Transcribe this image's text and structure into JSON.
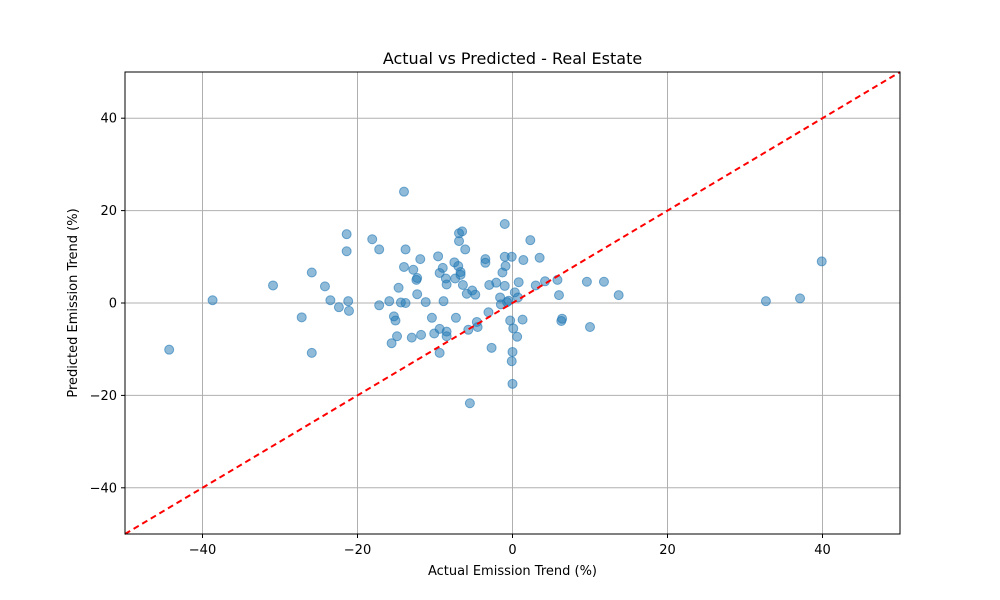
{
  "chart_data": {
    "type": "scatter",
    "title": "Actual vs Predicted - Real Estate",
    "xlabel": "Actual Emission Trend (%)",
    "ylabel": "Predicted Emission Trend (%)",
    "xlim": [
      -50,
      50
    ],
    "ylim": [
      -50,
      50
    ],
    "xticks": [
      -40,
      -20,
      0,
      20,
      40
    ],
    "yticks": [
      -40,
      -20,
      0,
      20,
      40
    ],
    "xtick_labels": [
      "−40",
      "−20",
      "0",
      "20",
      "40"
    ],
    "ytick_labels": [
      "−40",
      "−20",
      "0",
      "20",
      "40"
    ],
    "grid": true,
    "reference_line": {
      "from": [
        -50,
        -50
      ],
      "to": [
        50,
        50
      ],
      "style": "dashed",
      "color": "#ff0000"
    },
    "point_color": "#1f77b4",
    "points": [
      [
        -44.3,
        -10.1
      ],
      [
        -38.7,
        0.6
      ],
      [
        -30.9,
        3.8
      ],
      [
        -27.2,
        -3.1
      ],
      [
        -25.9,
        6.6
      ],
      [
        -25.9,
        -10.8
      ],
      [
        -24.2,
        3.6
      ],
      [
        -23.5,
        0.6
      ],
      [
        -22.4,
        -0.9
      ],
      [
        -21.4,
        14.9
      ],
      [
        -21.4,
        11.2
      ],
      [
        -21.2,
        0.4
      ],
      [
        -21.1,
        -1.7
      ],
      [
        -18.1,
        13.8
      ],
      [
        -17.2,
        11.6
      ],
      [
        -17.2,
        -0.5
      ],
      [
        -15.9,
        0.4
      ],
      [
        -15.6,
        -8.7
      ],
      [
        -15.3,
        -2.9
      ],
      [
        -15.1,
        -3.8
      ],
      [
        -14.9,
        -7.2
      ],
      [
        -14.7,
        3.3
      ],
      [
        -14.4,
        0.1
      ],
      [
        -14.0,
        7.8
      ],
      [
        -14.0,
        24.1
      ],
      [
        -13.8,
        11.6
      ],
      [
        -13.8,
        0.0
      ],
      [
        -13.0,
        -7.5
      ],
      [
        -12.8,
        7.2
      ],
      [
        -12.4,
        5.0
      ],
      [
        -12.3,
        5.4
      ],
      [
        -12.3,
        1.9
      ],
      [
        -11.9,
        9.5
      ],
      [
        -11.8,
        -6.9
      ],
      [
        -11.2,
        0.2
      ],
      [
        -10.4,
        -3.2
      ],
      [
        -10.1,
        -6.6
      ],
      [
        -9.6,
        10.1
      ],
      [
        -9.4,
        6.5
      ],
      [
        -9.4,
        -5.6
      ],
      [
        -9.4,
        -10.8
      ],
      [
        -9.0,
        7.6
      ],
      [
        -8.9,
        0.4
      ],
      [
        -8.6,
        5.3
      ],
      [
        -8.5,
        4.0
      ],
      [
        -8.5,
        -6.2
      ],
      [
        -8.5,
        -7.2
      ],
      [
        -7.5,
        8.8
      ],
      [
        -7.4,
        5.3
      ],
      [
        -7.3,
        -3.2
      ],
      [
        -7.0,
        8.0
      ],
      [
        -6.9,
        15.1
      ],
      [
        -6.9,
        13.4
      ],
      [
        -6.7,
        6.7
      ],
      [
        -6.7,
        6.1
      ],
      [
        -6.5,
        15.5
      ],
      [
        -6.4,
        3.9
      ],
      [
        -6.1,
        11.6
      ],
      [
        -5.9,
        2.0
      ],
      [
        -5.7,
        -5.8
      ],
      [
        -5.5,
        -21.7
      ],
      [
        -5.2,
        2.7
      ],
      [
        -4.8,
        1.8
      ],
      [
        -4.6,
        -4.1
      ],
      [
        -4.5,
        -5.2
      ],
      [
        -3.5,
        9.5
      ],
      [
        -3.5,
        8.7
      ],
      [
        -3.1,
        -2.0
      ],
      [
        -3.0,
        3.9
      ],
      [
        -2.7,
        -9.7
      ],
      [
        -2.1,
        4.4
      ],
      [
        -1.6,
        1.2
      ],
      [
        -1.5,
        -0.3
      ],
      [
        -1.3,
        6.6
      ],
      [
        -1.0,
        10.0
      ],
      [
        -1.0,
        17.1
      ],
      [
        -1.0,
        3.7
      ],
      [
        -0.9,
        8.0
      ],
      [
        -0.7,
        0.2
      ],
      [
        -0.5,
        0.5
      ],
      [
        -0.3,
        -3.8
      ],
      [
        -0.1,
        10.0
      ],
      [
        -0.1,
        -12.6
      ],
      [
        0.0,
        -10.6
      ],
      [
        0.0,
        -17.5
      ],
      [
        0.1,
        -5.5
      ],
      [
        0.3,
        2.3
      ],
      [
        0.6,
        -7.3
      ],
      [
        0.7,
        1.2
      ],
      [
        0.8,
        4.5
      ],
      [
        1.3,
        -3.6
      ],
      [
        1.4,
        9.3
      ],
      [
        2.3,
        13.6
      ],
      [
        3.0,
        3.8
      ],
      [
        3.5,
        9.8
      ],
      [
        4.2,
        4.7
      ],
      [
        5.8,
        5.0
      ],
      [
        6.0,
        1.7
      ],
      [
        6.3,
        -3.9
      ],
      [
        6.4,
        -3.4
      ],
      [
        9.6,
        4.6
      ],
      [
        10.0,
        -5.2
      ],
      [
        11.8,
        4.6
      ],
      [
        13.7,
        1.7
      ],
      [
        32.7,
        0.4
      ],
      [
        37.1,
        1.0
      ],
      [
        39.9,
        9.0
      ]
    ]
  }
}
